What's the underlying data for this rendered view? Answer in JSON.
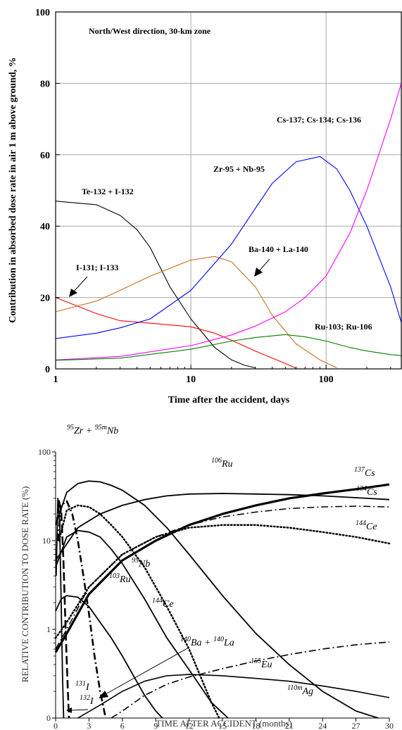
{
  "chart_data": [
    {
      "type": "line",
      "x_scale": "log",
      "title": "North/West direction, 30-km zone",
      "xlabel": "Time after the accident, days",
      "ylabel": "Contribution in absorbed dose rate in air 1 m above ground, %",
      "xlim": [
        1,
        360
      ],
      "ylim": [
        0,
        100
      ],
      "x_ticks": [
        1,
        10,
        100
      ],
      "x_tick_labels": [
        "1",
        "10",
        "100"
      ],
      "y_ticks": [
        0,
        20,
        40,
        60,
        80,
        100
      ],
      "y_tick_labels": [
        "0",
        "20",
        "40",
        "60",
        "80",
        "100"
      ],
      "grid": true,
      "series": [
        {
          "name": "Te-132 + I-132",
          "color": "#000000",
          "x": [
            1,
            2,
            3,
            4,
            5,
            7,
            10,
            15,
            20,
            25,
            30
          ],
          "y": [
            47,
            46,
            43,
            39,
            34,
            23,
            14,
            6,
            2.5,
            1,
            0.3
          ]
        },
        {
          "name": "I-131; I-133",
          "color": "#ff0000",
          "x": [
            1,
            2,
            3,
            5,
            10,
            15,
            20,
            30,
            50,
            60
          ],
          "y": [
            20,
            15.5,
            13.5,
            12.8,
            11.8,
            10,
            8,
            5,
            1.5,
            0.2
          ]
        },
        {
          "name": "Ba-140 + La-140",
          "color": "#c87020",
          "x": [
            1,
            2,
            3,
            5,
            10,
            15,
            20,
            30,
            40,
            60,
            90,
            120
          ],
          "y": [
            16,
            19,
            22,
            26,
            30.5,
            31.5,
            30,
            23,
            15,
            7,
            2.5,
            0.3
          ]
        },
        {
          "name": "Zr-95 + Nb-95",
          "color": "#0000ff",
          "x": [
            1,
            2,
            3,
            5,
            10,
            20,
            30,
            40,
            60,
            90,
            120,
            150,
            200,
            300,
            360
          ],
          "y": [
            8.5,
            10,
            11.5,
            14,
            22,
            35,
            45,
            52,
            58,
            59.5,
            56,
            50,
            40,
            23,
            13
          ]
        },
        {
          "name": "Cs-137; Cs-134; Cs-136",
          "color": "#ff00ff",
          "x": [
            1,
            3,
            10,
            20,
            30,
            50,
            70,
            100,
            150,
            200,
            250,
            300,
            360
          ],
          "y": [
            2.5,
            3.5,
            6.5,
            9.5,
            12,
            16,
            20,
            26,
            38,
            50,
            61,
            70,
            80
          ]
        },
        {
          "name": "Ru-103; Ru-106",
          "color": "#008000",
          "x": [
            1,
            3,
            10,
            20,
            30,
            50,
            70,
            100,
            150,
            200,
            300,
            360
          ],
          "y": [
            2.4,
            3,
            5.5,
            7.8,
            8.8,
            9.6,
            9,
            7.8,
            6,
            5,
            4,
            3.7
          ]
        }
      ],
      "annotations": [
        "Te-132 + I-132",
        "I-131; I-133",
        "Ba-140 + La-140",
        "Zr-95 + Nb-95",
        "Cs-137; Cs-134; Cs-136",
        "Ru-103; Ru-106"
      ]
    },
    {
      "type": "line",
      "y_scale": "log",
      "xlabel": "TIME AFTER ACCIDENT (months)",
      "ylabel": "RELATIVE CONTRIBUTION TO DOSE RATE (%)",
      "xlim": [
        0,
        30
      ],
      "ylim": [
        0.1,
        100
      ],
      "x_ticks": [
        0,
        3,
        6,
        9,
        12,
        15,
        18,
        21,
        24,
        27,
        30
      ],
      "x_tick_labels": [
        "0",
        "3",
        "6",
        "9",
        "12",
        "15",
        "18",
        "21",
        "24",
        "27",
        "30"
      ],
      "y_ticks": [
        0.1,
        1,
        10,
        100
      ],
      "y_tick_labels": [
        "0",
        "1",
        "10",
        "100"
      ],
      "grid": false,
      "series": [
        {
          "label": {
            "sup1": "95",
            "a": "Zr + ",
            "sup2": "95m",
            "b": "Nb"
          },
          "style": "solid",
          "width": 1.8,
          "x": [
            0,
            1,
            2,
            3,
            4,
            5,
            6,
            8,
            10,
            12,
            15,
            18,
            21,
            24,
            27,
            29
          ],
          "y": [
            15,
            35,
            44,
            47,
            46,
            42,
            37,
            25,
            14,
            7,
            2.4,
            0.9,
            0.4,
            0.2,
            0.12,
            0.1
          ]
        },
        {
          "label": {
            "sup1": "106",
            "a": "Ru"
          },
          "style": "solid",
          "width": 1.8,
          "x": [
            0,
            2,
            4,
            6,
            8,
            10,
            12,
            15,
            18,
            21,
            24,
            27,
            30
          ],
          "y": [
            6,
            14,
            20,
            25,
            29,
            32,
            33.5,
            34,
            33.5,
            33,
            32,
            30.5,
            29
          ]
        },
        {
          "label": {
            "sup1": "137",
            "a": "Cs"
          },
          "style": "solid",
          "width": 3.2,
          "x": [
            0,
            1,
            3,
            6,
            9,
            12,
            15,
            18,
            21,
            24,
            27,
            30
          ],
          "y": [
            0.55,
            0.9,
            2.5,
            6,
            10,
            15,
            20,
            25,
            30,
            34,
            38,
            43
          ]
        },
        {
          "label": {
            "sup1": "134",
            "a": "Cs"
          },
          "style": "dashdot",
          "width": 1.5,
          "x": [
            0,
            1,
            3,
            6,
            9,
            12,
            15,
            18,
            21,
            24,
            27,
            30
          ],
          "y": [
            0.6,
            1,
            3,
            7,
            11,
            15,
            18.5,
            21,
            23,
            24,
            24.5,
            24
          ]
        },
        {
          "label": {
            "sup1": "144",
            "a": "Ce"
          },
          "style": "dotted",
          "width": 2.5,
          "x": [
            0,
            1,
            3,
            6,
            9,
            12,
            15,
            18,
            21,
            24,
            27,
            30
          ],
          "y": [
            0.8,
            1.2,
            3,
            7,
            11,
            14,
            15,
            15,
            14,
            12.5,
            11,
            9.3
          ]
        },
        {
          "label": {
            "sup1": "95",
            "a": "Nb"
          },
          "style": "dotted",
          "width": 2.5,
          "x": [
            0.3,
            1,
            2,
            3,
            4,
            5,
            6,
            8,
            10,
            12,
            13,
            14,
            14.7
          ],
          "y": [
            10,
            22,
            25,
            24,
            20,
            15,
            11,
            5,
            1.8,
            0.6,
            0.3,
            0.15,
            0.1
          ]
        },
        {
          "label": {
            "sup1": "103",
            "a": "Ru"
          },
          "style": "solid",
          "width": 1.8,
          "x": [
            0,
            1,
            2,
            3,
            4,
            5,
            6,
            8,
            10,
            12,
            14,
            15.5
          ],
          "y": [
            5,
            11,
            13,
            12.5,
            11,
            8,
            5.5,
            2.2,
            0.8,
            0.35,
            0.15,
            0.1
          ]
        },
        {
          "label": {
            "sup1": "144",
            "a": "Ce"
          },
          "style": "solid",
          "width": 1.8,
          "x": [
            0,
            0.5,
            1,
            2,
            3,
            4,
            5,
            6,
            7,
            8,
            9,
            9.6
          ],
          "y": [
            1.6,
            2.2,
            2.4,
            2.3,
            1.8,
            1.2,
            0.8,
            0.5,
            0.3,
            0.18,
            0.12,
            0.1
          ]
        },
        {
          "label": {
            "sup1": "140",
            "a": "Ba + ",
            "sup2": "140",
            "b": "La"
          },
          "style": "dashdot",
          "width": 2.6,
          "x": [
            0.2,
            0.5,
            1,
            1.5,
            2,
            2.5,
            3,
            3.5,
            4,
            4.5
          ],
          "y": [
            10,
            25,
            28,
            20,
            10,
            4,
            1.5,
            0.5,
            0.2,
            0.1
          ]
        },
        {
          "label": {
            "sup1": "131",
            "a": "I"
          },
          "style": "dashed",
          "width": 2.6,
          "x": [
            0.1,
            0.3,
            0.5,
            0.7,
            0.9,
            1.1,
            1.2
          ],
          "y": [
            15,
            28,
            22,
            6,
            1,
            0.2,
            0.1
          ]
        },
        {
          "label": {
            "sup1": "132",
            "a": "I"
          },
          "style": "solid",
          "width": 1.8,
          "x": [
            0.05,
            0.2,
            0.35,
            0.5,
            0.62,
            0.72
          ],
          "y": [
            4,
            30,
            18,
            2,
            0.3,
            0.1
          ]
        },
        {
          "label": {
            "sup1": "155",
            "a": "Eu"
          },
          "style": "dashdot",
          "width": 1.6,
          "x": [
            5,
            6,
            8,
            10,
            12,
            15,
            18,
            21,
            24,
            27,
            30
          ],
          "y": [
            0.1,
            0.12,
            0.18,
            0.24,
            0.29,
            0.36,
            0.44,
            0.52,
            0.6,
            0.67,
            0.72
          ]
        },
        {
          "label": {
            "sup1": "110m",
            "a": "Ag"
          },
          "style": "solid",
          "width": 1.6,
          "x": [
            2,
            4,
            6,
            8,
            10,
            12,
            15,
            18,
            21,
            24,
            27,
            30
          ],
          "y": [
            0.1,
            0.14,
            0.2,
            0.26,
            0.3,
            0.31,
            0.3,
            0.28,
            0.26,
            0.23,
            0.2,
            0.17
          ]
        }
      ]
    }
  ]
}
